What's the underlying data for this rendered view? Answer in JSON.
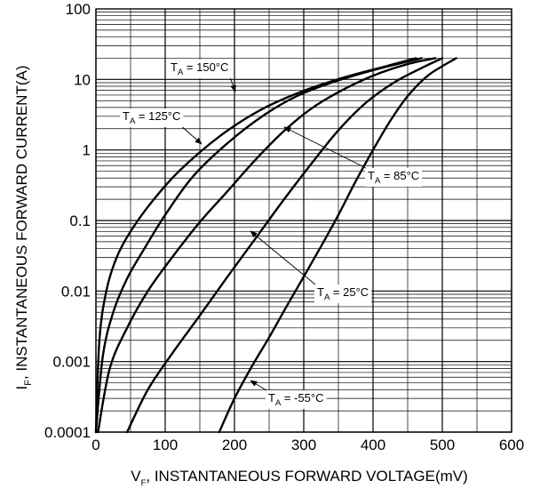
{
  "chart_data": {
    "type": "line",
    "title": "",
    "xlabel": {
      "prefix": "V",
      "sub": "F",
      "rest": ", INSTANTANEOUS FORWARD VOLTAGE(mV)"
    },
    "ylabel": {
      "prefix": "I",
      "sub": "F",
      "rest": ", INSTANTANEOUS FORWARD CURRENT(A)"
    },
    "xlim": [
      0,
      600
    ],
    "ylim": [
      0.0001,
      100
    ],
    "yscale": "log",
    "grid": true,
    "x_ticks": [
      0,
      100,
      200,
      300,
      400,
      500,
      600
    ],
    "x_tick_labels": [
      "0",
      "100",
      "200",
      "300",
      "400",
      "500",
      "600"
    ],
    "y_ticks": [
      0.0001,
      0.001,
      0.01,
      0.1,
      1,
      10,
      100
    ],
    "y_tick_labels": [
      "0.0001",
      "0.001",
      "0.01",
      "0.1",
      "1",
      "10",
      "100"
    ],
    "series": [
      {
        "name": "TA = 150°C",
        "x": [
          0,
          5,
          15,
          30,
          50,
          80,
          120,
          180,
          240,
          300,
          360,
          420,
          462
        ],
        "y": [
          0.0001,
          0.002,
          0.01,
          0.03,
          0.07,
          0.18,
          0.5,
          1.6,
          3.8,
          6.9,
          10.8,
          15.5,
          20
        ]
      },
      {
        "name": "TA = 125°C",
        "x": [
          0,
          10,
          25,
          45,
          70,
          100,
          140,
          190,
          240,
          290,
          340,
          400,
          470
        ],
        "y": [
          0.0001,
          0.0012,
          0.005,
          0.015,
          0.04,
          0.12,
          0.42,
          1.25,
          3.0,
          5.8,
          9.0,
          13.5,
          20
        ]
      },
      {
        "name": "TA = 85°C",
        "x": [
          3,
          20,
          45,
          75,
          110,
          150,
          190,
          230,
          270,
          310,
          350,
          400,
          450,
          490
        ],
        "y": [
          0.0001,
          0.0008,
          0.003,
          0.01,
          0.03,
          0.095,
          0.26,
          0.72,
          1.8,
          3.8,
          6.6,
          11.3,
          16.5,
          20
        ]
      },
      {
        "name": "TA = 25°C",
        "x": [
          45,
          75,
          110,
          150,
          190,
          230,
          270,
          310,
          350,
          390,
          430,
          470,
          500
        ],
        "y": [
          0.0001,
          0.0004,
          0.0013,
          0.0045,
          0.016,
          0.055,
          0.19,
          0.62,
          1.9,
          4.7,
          9.0,
          14.5,
          20
        ]
      },
      {
        "name": "TA = -55°C",
        "x": [
          178,
          200,
          225,
          250,
          275,
          300,
          325,
          350,
          375,
          400,
          425,
          450,
          480,
          520
        ],
        "y": [
          0.0001,
          0.0003,
          0.00085,
          0.0022,
          0.006,
          0.016,
          0.043,
          0.12,
          0.36,
          1.0,
          2.6,
          5.8,
          11.5,
          20
        ]
      }
    ],
    "annotations": [
      {
        "text_prefix": "T",
        "text_sub": "A",
        "text_rest": " = 150°C",
        "series": "TA = 150°C"
      },
      {
        "text_prefix": "T",
        "text_sub": "A",
        "text_rest": " = 125°C",
        "series": "TA = 125°C"
      },
      {
        "text_prefix": "T",
        "text_sub": "A",
        "text_rest": " = 85°C",
        "series": "TA = 85°C"
      },
      {
        "text_prefix": "T",
        "text_sub": "A",
        "text_rest": " = 25°C",
        "series": "TA = 25°C"
      },
      {
        "text_prefix": "T",
        "text_sub": "A",
        "text_rest": " = -55°C",
        "series": "TA = -55°C"
      }
    ]
  }
}
